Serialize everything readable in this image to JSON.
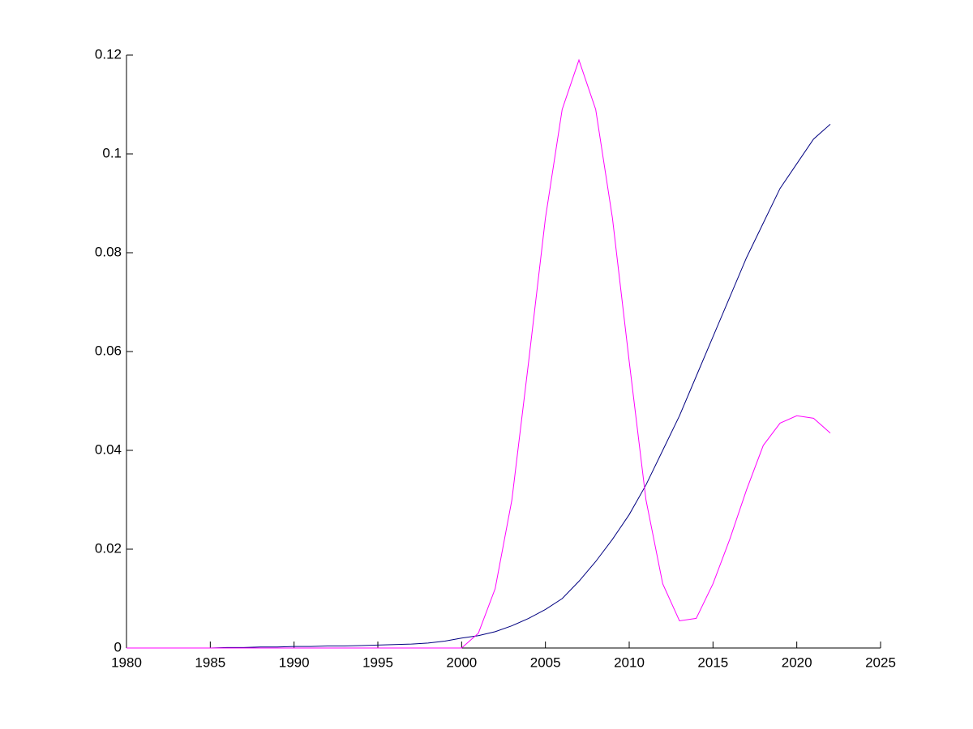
{
  "chart_data": {
    "type": "line",
    "x": [
      1980,
      1981,
      1982,
      1983,
      1984,
      1985,
      1986,
      1987,
      1988,
      1989,
      1990,
      1991,
      1992,
      1993,
      1994,
      1995,
      1996,
      1997,
      1998,
      1999,
      2000,
      2001,
      2002,
      2003,
      2004,
      2005,
      2006,
      2007,
      2008,
      2009,
      2010,
      2011,
      2012,
      2013,
      2014,
      2015,
      2016,
      2017,
      2018,
      2019,
      2020,
      2021,
      2022
    ],
    "series": [
      {
        "color": "#000080",
        "values": [
          0,
          0,
          0,
          0,
          0,
          0,
          0.0001,
          0.0001,
          0.0002,
          0.0002,
          0.0003,
          0.0003,
          0.0004,
          0.0004,
          0.0005,
          0.0006,
          0.0007,
          0.0008,
          0.001,
          0.0014,
          0.002,
          0.0025,
          0.0033,
          0.0045,
          0.006,
          0.0078,
          0.01,
          0.0135,
          0.0175,
          0.022,
          0.027,
          0.033,
          0.04,
          0.047,
          0.055,
          0.063,
          0.071,
          0.079,
          0.086,
          0.093,
          0.098,
          0.103,
          0.106
        ]
      },
      {
        "color": "#ff00ff",
        "values": [
          0,
          0,
          0,
          0,
          0,
          0,
          0,
          0,
          0,
          0,
          0,
          0,
          0,
          0,
          0,
          0,
          0,
          0,
          0,
          0,
          0,
          0.003,
          0.012,
          0.03,
          0.058,
          0.087,
          0.109,
          0.119,
          0.109,
          0.087,
          0.058,
          0.03,
          0.013,
          0.0055,
          0.006,
          0.013,
          0.022,
          0.032,
          0.041,
          0.0455,
          0.047,
          0.0465,
          0.0435
        ]
      }
    ],
    "xlim": [
      1980,
      2025
    ],
    "xticks": [
      1980,
      1985,
      1990,
      1995,
      2000,
      2005,
      2010,
      2015,
      2020,
      2025
    ],
    "ylim": [
      0,
      0.12
    ],
    "yticks": [
      0,
      0.02,
      0.04,
      0.06,
      0.08,
      0.1,
      0.12
    ]
  }
}
